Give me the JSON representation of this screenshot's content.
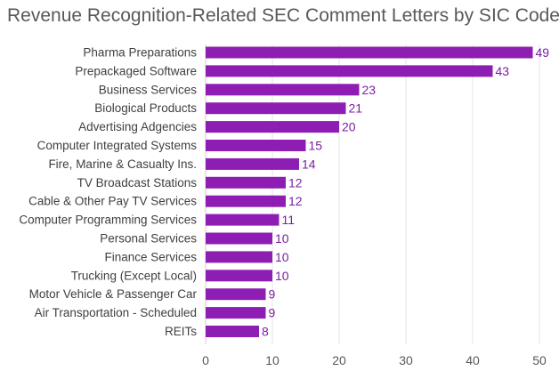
{
  "chart_data": {
    "type": "bar",
    "orientation": "horizontal",
    "title": "Revenue Recognition-Related SEC Comment Letters by SIC Code",
    "xlabel": "",
    "ylabel": "",
    "xlim": [
      0,
      50
    ],
    "xticks": [
      0,
      10,
      20,
      30,
      40,
      50
    ],
    "grid": true,
    "legend": "none",
    "bar_color": "#8e1db4",
    "label_color": "#7b1fa2",
    "categories": [
      "Pharma Preparations",
      "Prepackaged Software",
      "Business Services",
      "Biological Products",
      "Advertising Adgencies",
      "Computer Integrated Systems",
      "Fire, Marine & Casualty Ins.",
      "TV Broadcast Stations",
      "Cable & Other Pay TV Services",
      "Computer Programming Services",
      "Personal Services",
      "Finance Services",
      "Trucking (Except Local)",
      "Motor Vehicle  & Passenger Car",
      "Air Transportation - Scheduled",
      "REITs"
    ],
    "values": [
      49,
      43,
      23,
      21,
      20,
      15,
      14,
      12,
      12,
      11,
      10,
      10,
      10,
      9,
      9,
      8
    ]
  }
}
